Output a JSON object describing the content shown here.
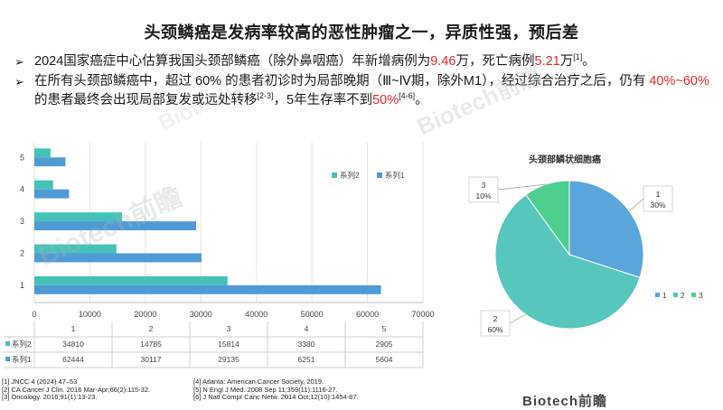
{
  "title": "头颈鳞癌是发病率较高的恶性肿瘤之一，异质性强，预后差",
  "bullet1": {
    "marker": "➢",
    "text_a": "2024国家癌症中心估算我国头颈部鳞癌（除外鼻咽癌）年新增病例为",
    "value_a": "9.46",
    "text_b": "万，死亡病例",
    "value_b": "5.21",
    "text_c": "万",
    "ref": "[1]",
    "text_d": "。"
  },
  "bullet2": {
    "marker": "➢",
    "text_a": "在所有头颈部鳞癌中，超过 60% 的患者初诊时为局部晚期（Ⅲ~Ⅳ期，除外M1），经过综合治疗之后，仍有 ",
    "value_a": "40%~60%",
    "text_b": " 的患者最终会出现局部复发或远处转移",
    "ref_a": "[2-3]",
    "text_c": "，5年生存率不到",
    "value_b": "50%",
    "ref_b": "[4-6]",
    "text_d": "。"
  },
  "watermarks": [
    "Biotech前瞻",
    "Biotech前瞻",
    "Biotech前瞻"
  ],
  "footer_logo": "Biotech前瞻",
  "chart_data": [
    {
      "type": "bar",
      "orientation": "horizontal",
      "categories": [
        "1",
        "2",
        "3",
        "4",
        "5"
      ],
      "series": [
        {
          "name": "系列1",
          "values": [
            62444,
            30117,
            29135,
            6251,
            5604
          ],
          "color": "#4f9bd6"
        },
        {
          "name": "系列2",
          "values": [
            34810,
            14785,
            15814,
            3380,
            2905
          ],
          "color": "#45c2b7"
        }
      ],
      "xlim": [
        0,
        70000
      ],
      "xticks": [
        0,
        10000,
        20000,
        30000,
        40000,
        50000,
        60000,
        70000
      ],
      "grid": true,
      "legend": "top-right",
      "table": {
        "header": [
          "1",
          "2",
          "3",
          "4",
          "5"
        ],
        "rows": [
          {
            "name": "系列2",
            "cells": [
              "34810",
              "14785",
              "15814",
              "3380",
              "2905"
            ]
          },
          {
            "name": "系列1",
            "cells": [
              "62444",
              "30117",
              "29135",
              "6251",
              "5604"
            ]
          }
        ]
      }
    },
    {
      "type": "pie",
      "title": "头颈部鳞状细胞癌",
      "labels": [
        "1",
        "2",
        "3"
      ],
      "values": [
        30,
        60,
        10
      ],
      "value_labels": [
        "30%",
        "60%",
        "10%"
      ],
      "colors": [
        "#5aa6dc",
        "#57c6bc",
        "#4ecf8e"
      ],
      "legend": "bottom-right"
    }
  ],
  "refs_left": [
    "[1] JNCC 4 (2024) 47–53",
    "[2] CA Cancer J Clin. 2016 Mar-Apr;66(2):115-32.",
    "[3] Oncology. 2016;91(1):13-23."
  ],
  "refs_right": [
    "[4] Atlanta: American Cancer Society, 2019.",
    "[5] N Engl J Med. 2008 Sep 11;359(11):1116-27.",
    "[6] J Natl Compr Canc Netw. 2014 Oct;12(10):1454-87."
  ]
}
